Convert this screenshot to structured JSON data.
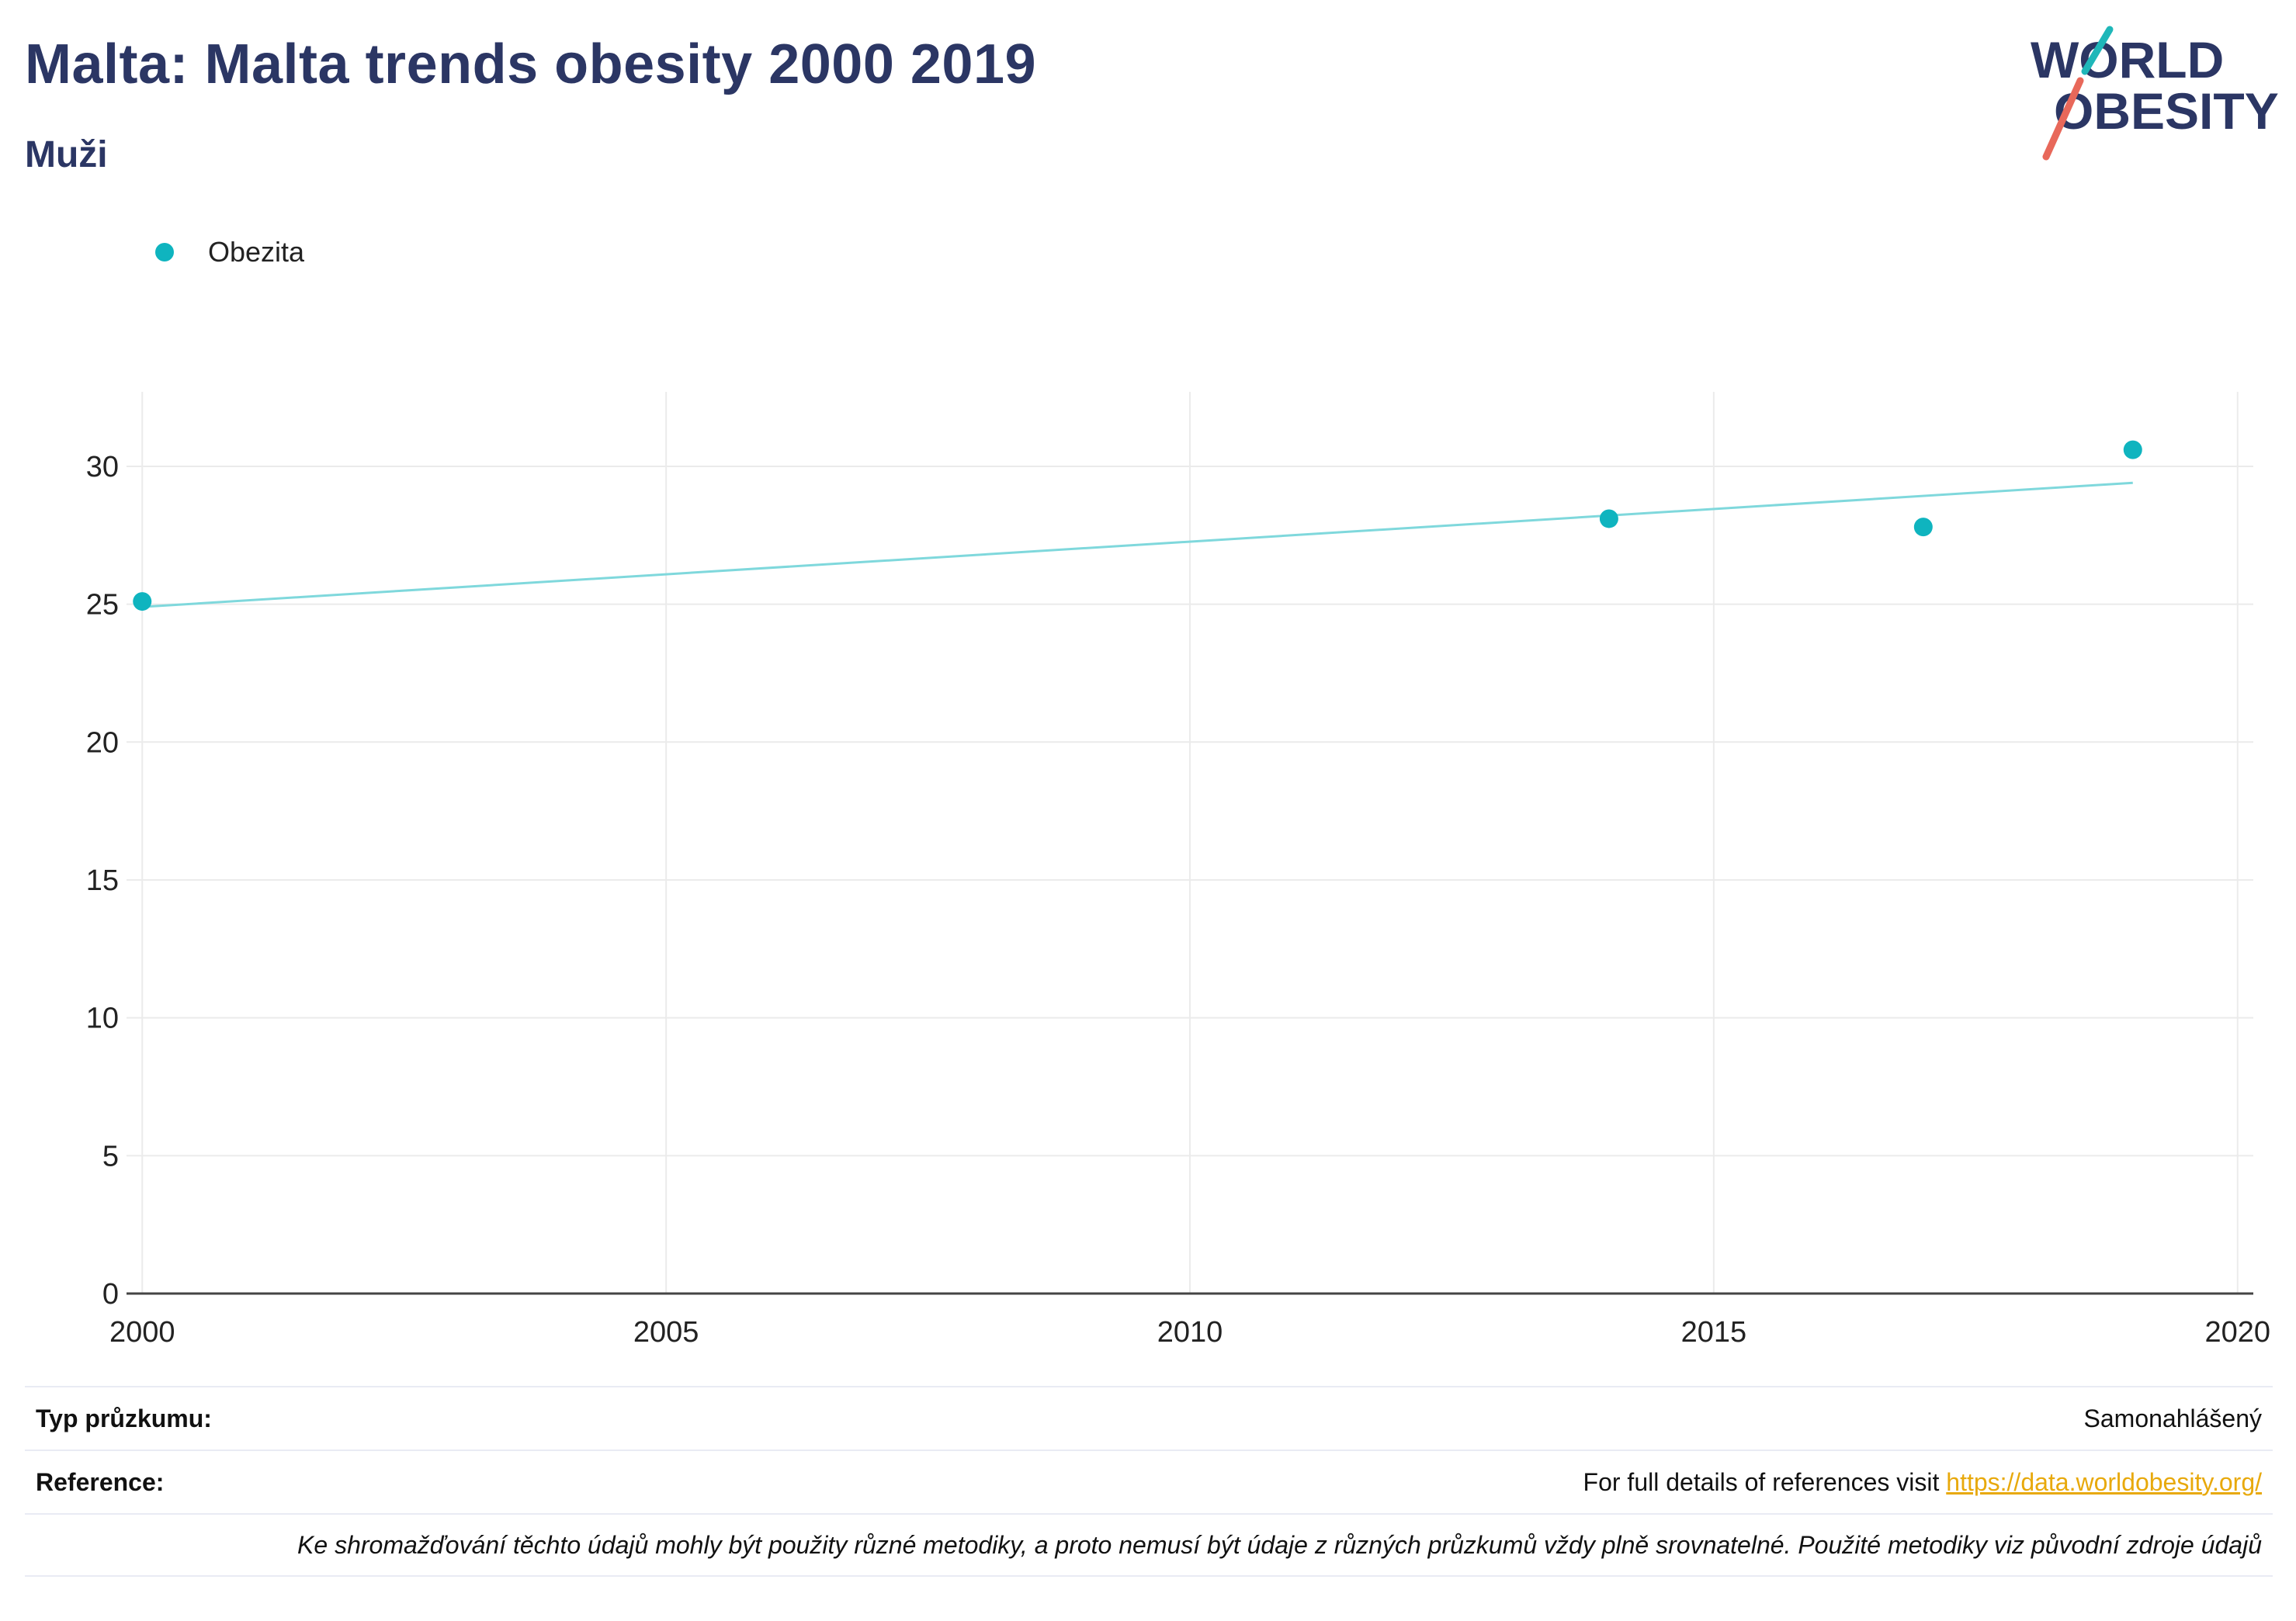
{
  "header": {
    "title": "Malta: Malta trends obesity 2000 2019",
    "subtitle": "Muži"
  },
  "logo": {
    "line1": "WORLD",
    "line2": "OBESITY",
    "colors": {
      "text": "#2b3664",
      "teal": "#1fb7b9",
      "coral": "#e8685a"
    }
  },
  "legend": {
    "label": "Obezita",
    "color": "#0fb4bf"
  },
  "chart_data": {
    "type": "scatter",
    "x": [
      2000,
      2014,
      2017,
      2019
    ],
    "series": [
      {
        "name": "Obezita",
        "values": [
          25.1,
          28.1,
          27.8,
          30.6
        ],
        "color": "#0fb4bf"
      }
    ],
    "trendline": {
      "x": [
        2000,
        2019
      ],
      "y": [
        24.9,
        29.4
      ],
      "color": "#7fd8dc"
    },
    "xlim": [
      1999.85,
      2020.15
    ],
    "ylim": [
      0,
      32.7
    ],
    "xticks": [
      "2000",
      "2005",
      "2010",
      "2015",
      "2020"
    ],
    "yticks": [
      "0",
      "5",
      "10",
      "15",
      "20",
      "25",
      "30"
    ],
    "grid": true,
    "legend_position": "top-left"
  },
  "info": {
    "survey_type_label": "Typ průzkumu:",
    "survey_type_value": "Samonahlášený",
    "reference_label": "Reference:",
    "reference_text": "For full details of references visit ",
    "reference_link": "https://data.worldobesity.org/",
    "note": "Ke shromažďování těchto údajů mohly být použity různé metodiky, a proto nemusí být údaje z různých průzkumů vždy plně srovnatelné. Použité metodiky viz původní zdroje údajů"
  }
}
